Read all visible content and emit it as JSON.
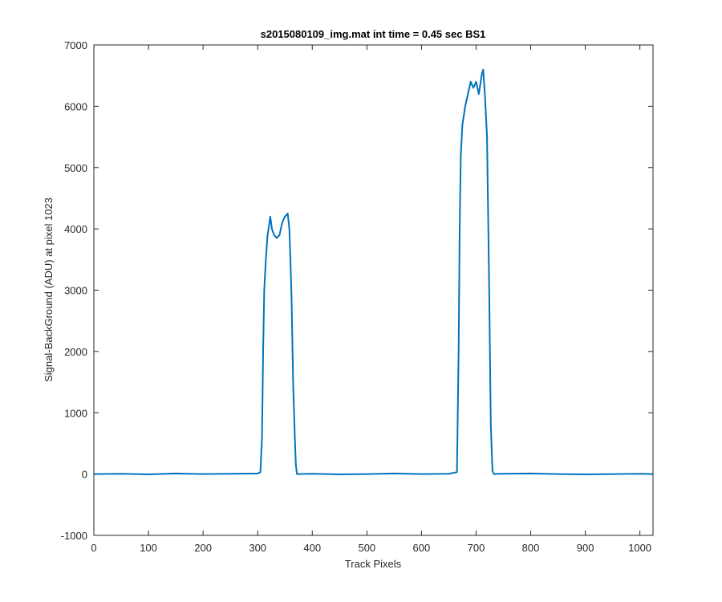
{
  "chart_data": {
    "type": "line",
    "title": "s2015080109_img.mat int time = 0.45 sec   BS1",
    "xlabel": "Track Pixels",
    "ylabel": "Signal-BackGround (ADU) at pixel 1023",
    "xlim": [
      0,
      1024
    ],
    "ylim": [
      -1000,
      7000
    ],
    "xticks": [
      0,
      100,
      200,
      300,
      400,
      500,
      600,
      700,
      800,
      900,
      1000
    ],
    "yticks": [
      -1000,
      0,
      1000,
      2000,
      3000,
      4000,
      5000,
      6000,
      7000
    ],
    "grid": false,
    "line_color": "#0072BD",
    "series": [
      {
        "x": [
          0,
          50,
          100,
          150,
          200,
          250,
          300,
          305,
          308,
          310,
          312,
          315,
          318,
          320,
          323,
          326,
          330,
          335,
          340,
          345,
          350,
          355,
          358,
          360,
          362,
          365,
          368,
          370,
          372,
          375,
          400,
          450,
          500,
          550,
          600,
          650,
          665,
          668,
          670,
          672,
          675,
          680,
          685,
          690,
          695,
          700,
          705,
          710,
          713,
          716,
          720,
          724,
          727,
          730,
          733,
          740,
          800,
          850,
          900,
          950,
          1000,
          1024
        ],
        "y": [
          0,
          5,
          -5,
          10,
          0,
          5,
          10,
          30,
          600,
          2000,
          3000,
          3500,
          3900,
          4000,
          4200,
          4000,
          3900,
          3850,
          3900,
          4100,
          4200,
          4250,
          4000,
          3500,
          2900,
          1500,
          600,
          150,
          0,
          0,
          5,
          -5,
          0,
          10,
          0,
          5,
          30,
          2000,
          4000,
          5200,
          5700,
          6000,
          6200,
          6400,
          6300,
          6400,
          6200,
          6500,
          6600,
          6200,
          5500,
          3000,
          800,
          50,
          0,
          5,
          10,
          0,
          -5,
          0,
          5,
          0
        ]
      }
    ]
  }
}
